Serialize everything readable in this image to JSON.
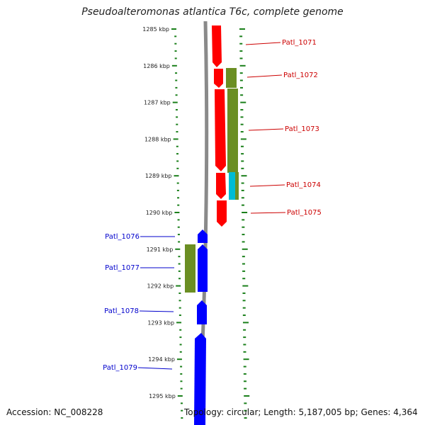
{
  "title": "Pseudoalteromonas atlantica T6c, complete genome",
  "footer": {
    "accession": "Accession: NC_008228",
    "topology": "Topology: circular; Length: 5,187,005 bp; Genes: 4,364"
  },
  "colors": {
    "forward_gene": "#ff0000",
    "reverse_gene": "#0000ff",
    "olive_feature": "#6b8e23",
    "cyan_feature": "#00bcd4",
    "scale_ticks": "#1a7f1a",
    "backbone": "#888888"
  },
  "ruler": {
    "unit": "kbp",
    "labels": [
      "1285 kbp",
      "1286 kbp",
      "1287 kbp",
      "1288 kbp",
      "1289 kbp",
      "1290 kbp",
      "1291 kbp",
      "1292 kbp",
      "1293 kbp",
      "1294 kbp",
      "1295 kbp"
    ]
  },
  "genes_forward": [
    "Patl_1071",
    "Patl_1072",
    "Patl_1073",
    "Patl_1074",
    "Patl_1075"
  ],
  "genes_reverse": [
    "Patl_1076",
    "Patl_1077",
    "Patl_1078",
    "Patl_1079"
  ]
}
